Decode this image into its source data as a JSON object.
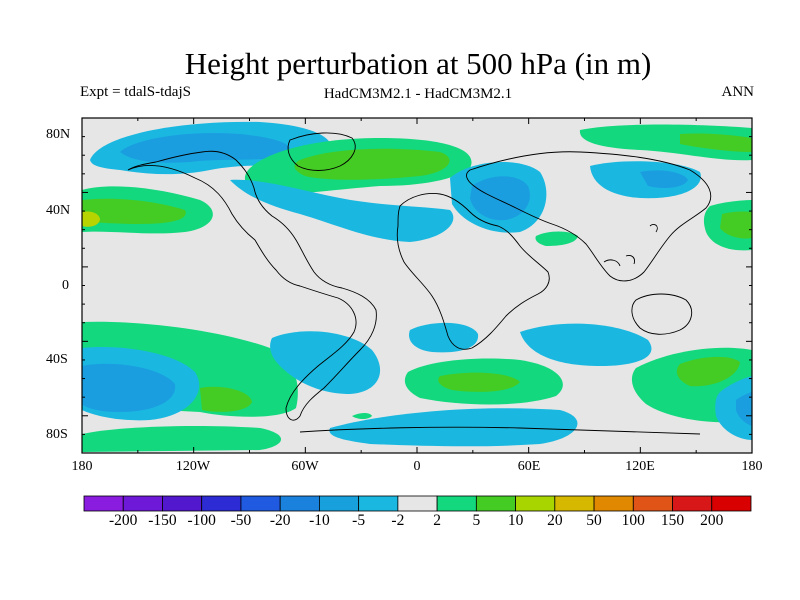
{
  "figure": {
    "title": "Height perturbation at 500 hPa (in m)",
    "left_label": "Expt = tdalS-tdajS",
    "center_label": "HadCM3M2.1 - HadCM3M2.1",
    "right_label": "ANN"
  },
  "axes": {
    "lat_ticks": [
      "80N",
      "40N",
      "0",
      "40S",
      "80S"
    ],
    "lon_ticks": [
      "180",
      "120W",
      "60W",
      "0",
      "60E",
      "120E",
      "180"
    ]
  },
  "colorbar": {
    "levels": [
      "-200",
      "-150",
      "-100",
      "-50",
      "-20",
      "-10",
      "-5",
      "-2",
      "2",
      "5",
      "10",
      "20",
      "50",
      "100",
      "150",
      "200"
    ],
    "colors": [
      "#8a1ce0",
      "#6f19d8",
      "#5218cd",
      "#2c2bd4",
      "#1f5ae0",
      "#1a82dc",
      "#17a0dc",
      "#1ab8e0",
      "#e6e6e6",
      "#13d87e",
      "#44cc24",
      "#a8d400",
      "#d6b800",
      "#e08800",
      "#e05418",
      "#d81818",
      "#d80000"
    ]
  },
  "map_colors": {
    "neutral": "#e6e6e6",
    "neg_light": "#1ab8e0",
    "neg_mid": "#1a9ee0",
    "neg_strong": "#1a70d8",
    "pos_light": "#13d87e",
    "pos_mid": "#44cc24",
    "pos_strong": "#b8d400"
  }
}
